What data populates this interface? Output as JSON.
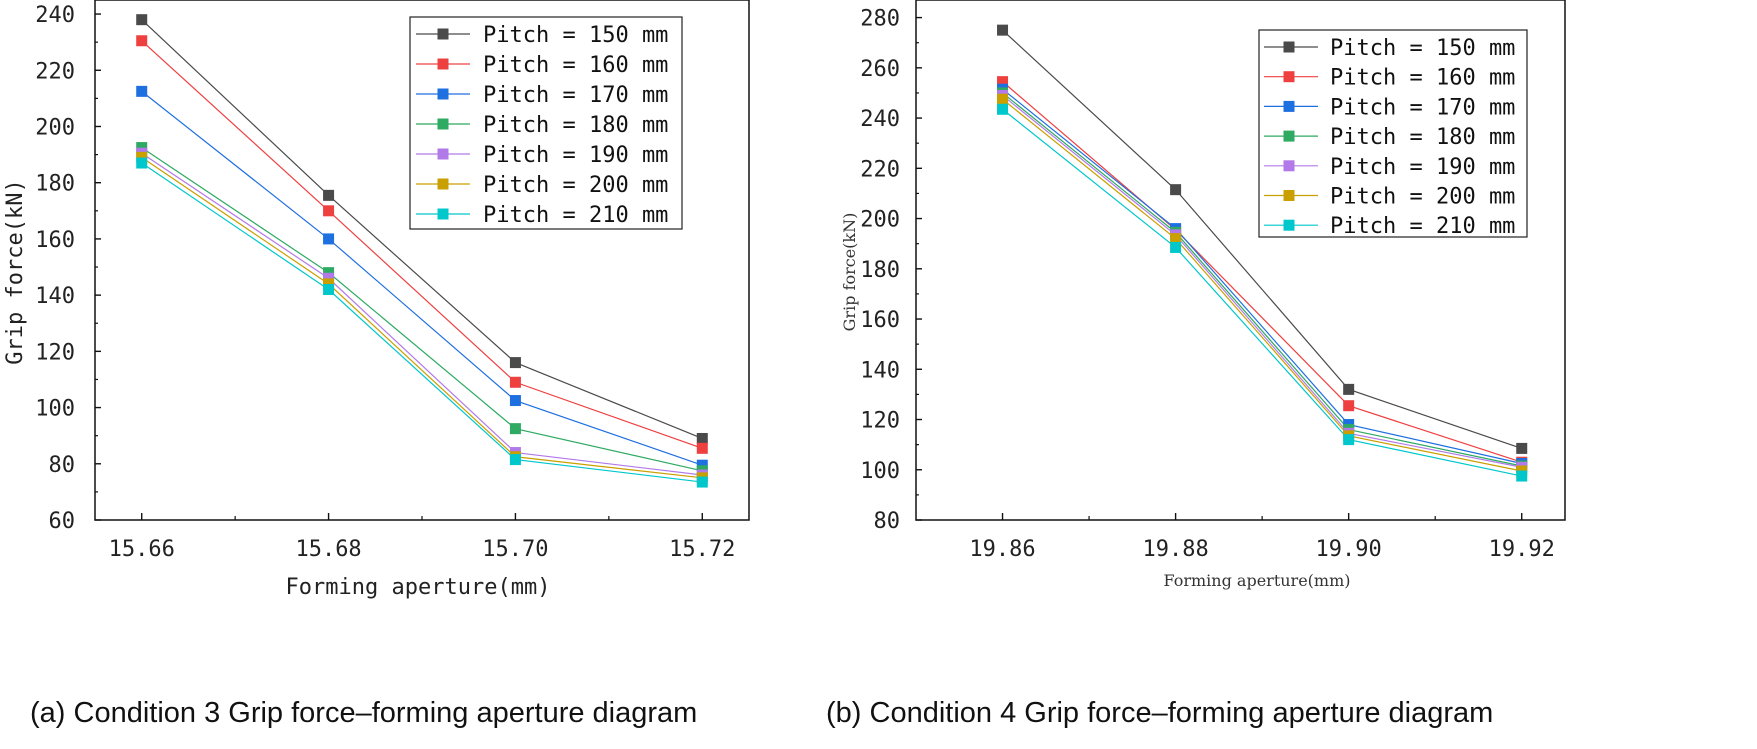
{
  "chart_data": [
    {
      "id": "a",
      "type": "line",
      "caption": "(a) Condition 3 Grip force–forming aperture diagram",
      "xlabel": "Forming aperture(mm)",
      "ylabel": "Grip force(kN)",
      "categories": [
        "15.66",
        "15.68",
        "15.70",
        "15.72"
      ],
      "x": [
        15.66,
        15.68,
        15.7,
        15.72
      ],
      "xlim": [
        15.655,
        15.725
      ],
      "ylim": [
        60,
        245
      ],
      "yticks": [
        60,
        80,
        100,
        120,
        140,
        160,
        180,
        200,
        220,
        240
      ],
      "legend_position": "top-right",
      "grid": false,
      "series": [
        {
          "name": "Pitch = 150 mm",
          "color": "#4a4a4a",
          "values": [
            238,
            175.5,
            116,
            89
          ]
        },
        {
          "name": "Pitch = 160 mm",
          "color": "#ef4040",
          "values": [
            230.5,
            170,
            109,
            85.5
          ]
        },
        {
          "name": "Pitch = 170 mm",
          "color": "#1e6fe0",
          "values": [
            212.5,
            160,
            102.5,
            79.5
          ]
        },
        {
          "name": "Pitch = 180 mm",
          "color": "#2eaa62",
          "values": [
            192.5,
            148,
            92.5,
            77.5
          ]
        },
        {
          "name": "Pitch = 190 mm",
          "color": "#b27ae8",
          "values": [
            190.5,
            146,
            84,
            76
          ]
        },
        {
          "name": "Pitch = 200 mm",
          "color": "#c9a000",
          "values": [
            189,
            144,
            82.5,
            75
          ]
        },
        {
          "name": "Pitch = 210 mm",
          "color": "#00c7cc",
          "values": [
            187,
            142,
            81.5,
            73.5
          ]
        }
      ]
    },
    {
      "id": "b",
      "type": "line",
      "caption": "(b) Condition 4 Grip force–forming aperture diagram",
      "xlabel": "Forming aperture(mm)",
      "ylabel": "Grip force(kN)",
      "categories": [
        "19.86",
        "19.88",
        "19.90",
        "19.92"
      ],
      "x": [
        19.86,
        19.88,
        19.9,
        19.92
      ],
      "xlim": [
        19.85,
        19.925
      ],
      "ylim": [
        80,
        287
      ],
      "yticks": [
        80,
        100,
        120,
        140,
        160,
        180,
        200,
        220,
        240,
        260,
        280
      ],
      "legend_position": "top-right",
      "grid": false,
      "series": [
        {
          "name": "Pitch = 150 mm",
          "color": "#4a4a4a",
          "values": [
            275,
            211.5,
            132,
            108.5
          ]
        },
        {
          "name": "Pitch = 160 mm",
          "color": "#ef4040",
          "values": [
            254.5,
            195.5,
            125.5,
            103
          ]
        },
        {
          "name": "Pitch = 170 mm",
          "color": "#1e6fe0",
          "values": [
            251.5,
            196,
            118,
            102.5
          ]
        },
        {
          "name": "Pitch = 180 mm",
          "color": "#2eaa62",
          "values": [
            250,
            194.5,
            116,
            101.5
          ]
        },
        {
          "name": "Pitch = 190 mm",
          "color": "#b27ae8",
          "values": [
            249,
            193.5,
            114.5,
            101
          ]
        },
        {
          "name": "Pitch = 200 mm",
          "color": "#c9a000",
          "values": [
            247.5,
            192,
            113.5,
            99.5
          ]
        },
        {
          "name": "Pitch = 210 mm",
          "color": "#00c7cc",
          "values": [
            243.5,
            188.5,
            112,
            97.5
          ]
        }
      ]
    }
  ]
}
